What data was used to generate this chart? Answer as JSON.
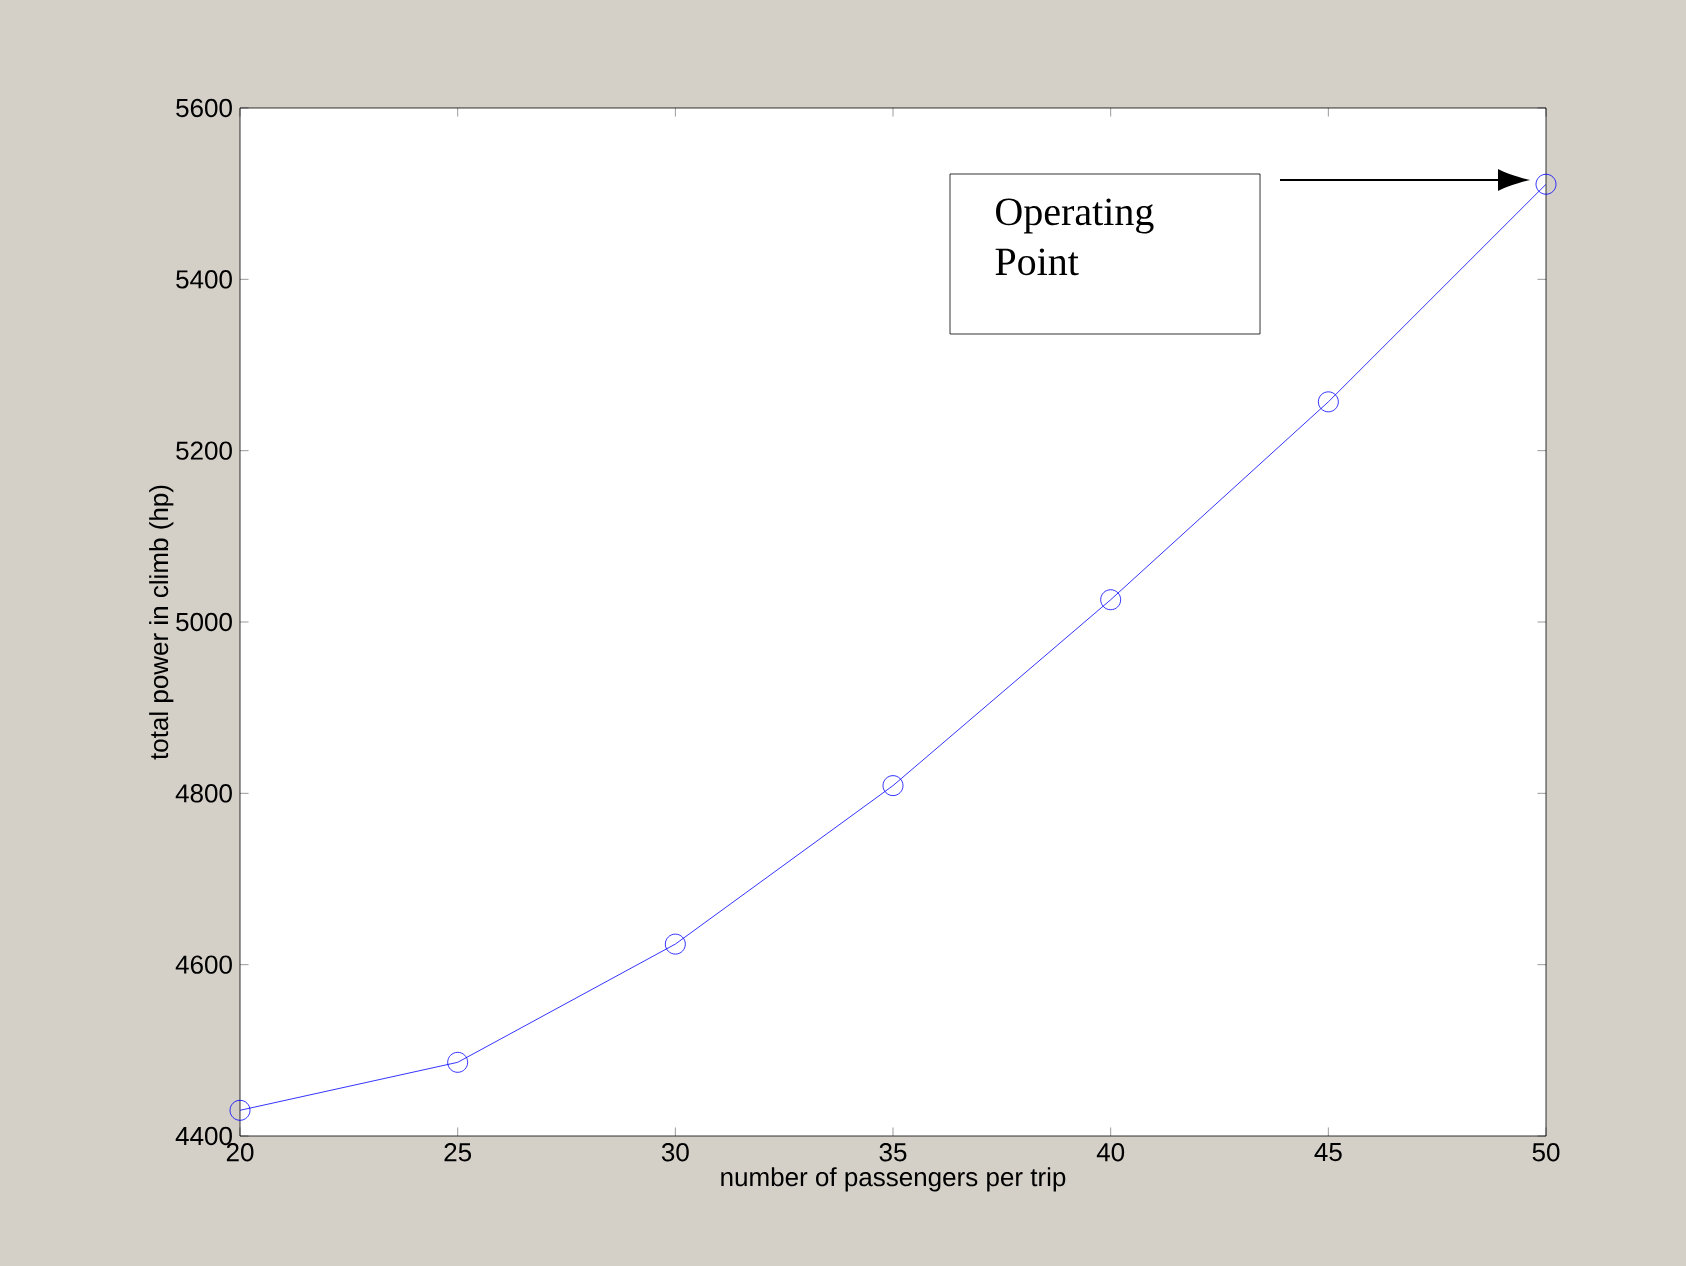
{
  "chart_data": {
    "type": "line",
    "xlabel": "number of passengers per trip",
    "ylabel": "total power in climb (hp)",
    "x": [
      20,
      25,
      30,
      35,
      40,
      45,
      50
    ],
    "series": [
      {
        "color": "#0000ff",
        "values": [
          4430,
          4486,
          4624,
          4809,
          5026,
          5257,
          5511
        ]
      }
    ],
    "marker": "circle",
    "line_style": "solid",
    "grid": false,
    "xlim": [
      20,
      50
    ],
    "xticks": [
      20,
      25,
      30,
      35,
      40,
      45,
      50
    ],
    "ylim": [
      4400,
      5600
    ],
    "yticks": [
      4400,
      4600,
      4800,
      5000,
      5200,
      5400,
      5600
    ],
    "annotations": [
      "Operating Point"
    ]
  }
}
